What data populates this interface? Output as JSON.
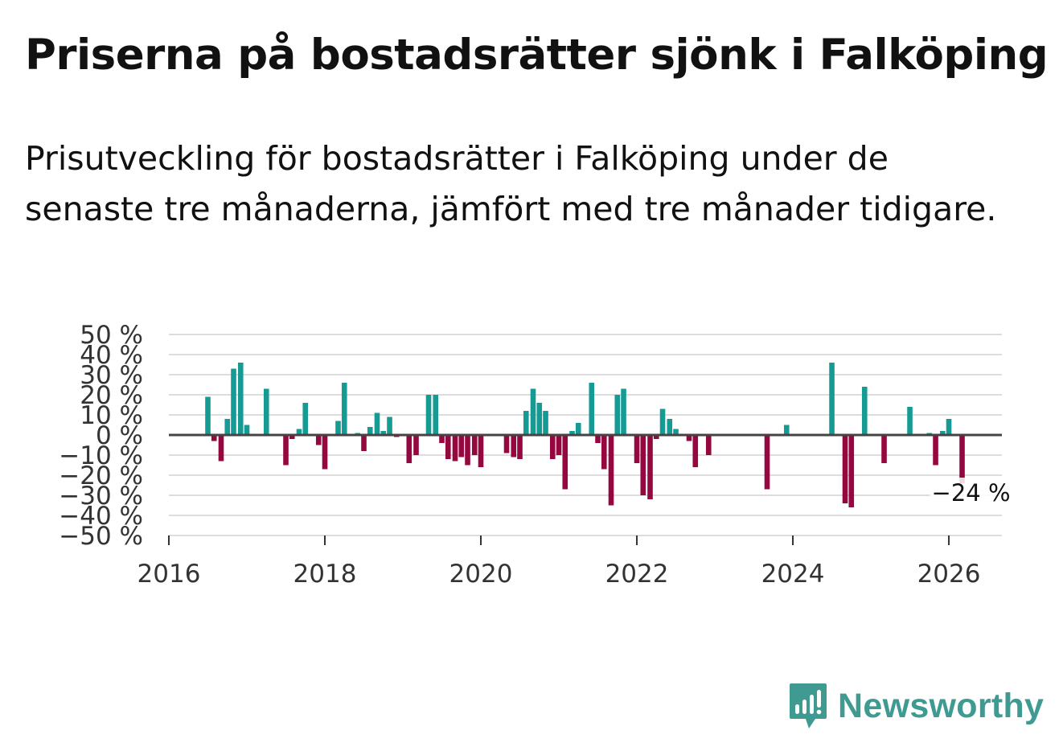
{
  "title": "Priserna på bostadsrätter sjönk i Falköping",
  "subtitle": "Prisutveckling för bostadsrätter i Falköping under de senaste tre månaderna, jämfört med tre månader tidigare.",
  "brand": {
    "name": "Newsworthy",
    "color": "#3f9a92"
  },
  "colors": {
    "positive": "#159b93",
    "negative": "#95083f",
    "grid": "#dddddd",
    "zero": "#444444"
  },
  "chart_data": {
    "type": "bar",
    "title": "",
    "xlabel": "",
    "ylabel": "",
    "ylim": [
      -50,
      50
    ],
    "xlim": [
      2016.0,
      2026.68
    ],
    "y_ticks": [
      {
        "value": 50,
        "label": "50 %"
      },
      {
        "value": 40,
        "label": "40 %"
      },
      {
        "value": 30,
        "label": "30 %"
      },
      {
        "value": 20,
        "label": "20 %"
      },
      {
        "value": 10,
        "label": "10 %"
      },
      {
        "value": 0,
        "label": "0 %"
      },
      {
        "value": -10,
        "label": "−10 %"
      },
      {
        "value": -20,
        "label": "−20 %"
      },
      {
        "value": -30,
        "label": "−30 %"
      },
      {
        "value": -40,
        "label": "−40 %"
      },
      {
        "value": -50,
        "label": "−50 %"
      }
    ],
    "x_ticks": [
      {
        "value": 2016,
        "label": "2016"
      },
      {
        "value": 2018,
        "label": "2018"
      },
      {
        "value": 2020,
        "label": "2020"
      },
      {
        "value": 2022,
        "label": "2022"
      },
      {
        "value": 2024,
        "label": "2024"
      },
      {
        "value": 2026,
        "label": "2026"
      }
    ],
    "annotation": {
      "x": 2026.17,
      "y": -24,
      "label": "−24 %"
    },
    "series": [
      {
        "name": "Prisutveckling",
        "points": [
          {
            "x": 2016.5,
            "y": 19
          },
          {
            "x": 2016.58,
            "y": -3
          },
          {
            "x": 2016.67,
            "y": -13
          },
          {
            "x": 2016.75,
            "y": 8
          },
          {
            "x": 2016.83,
            "y": 33
          },
          {
            "x": 2016.92,
            "y": 36
          },
          {
            "x": 2017.0,
            "y": 5
          },
          {
            "x": 2017.25,
            "y": 23
          },
          {
            "x": 2017.5,
            "y": -15
          },
          {
            "x": 2017.58,
            "y": -2
          },
          {
            "x": 2017.67,
            "y": 3
          },
          {
            "x": 2017.75,
            "y": 16
          },
          {
            "x": 2017.92,
            "y": -5
          },
          {
            "x": 2018.0,
            "y": -17
          },
          {
            "x": 2018.17,
            "y": 7
          },
          {
            "x": 2018.25,
            "y": 26
          },
          {
            "x": 2018.42,
            "y": 1
          },
          {
            "x": 2018.5,
            "y": -8
          },
          {
            "x": 2018.58,
            "y": 4
          },
          {
            "x": 2018.67,
            "y": 11
          },
          {
            "x": 2018.75,
            "y": 2
          },
          {
            "x": 2018.83,
            "y": 9
          },
          {
            "x": 2018.92,
            "y": -1
          },
          {
            "x": 2019.08,
            "y": -14
          },
          {
            "x": 2019.17,
            "y": -10
          },
          {
            "x": 2019.33,
            "y": 20
          },
          {
            "x": 2019.42,
            "y": 20
          },
          {
            "x": 2019.5,
            "y": -4
          },
          {
            "x": 2019.58,
            "y": -12
          },
          {
            "x": 2019.67,
            "y": -13
          },
          {
            "x": 2019.75,
            "y": -11
          },
          {
            "x": 2019.83,
            "y": -15
          },
          {
            "x": 2019.92,
            "y": -10
          },
          {
            "x": 2020.0,
            "y": -16
          },
          {
            "x": 2020.33,
            "y": -9
          },
          {
            "x": 2020.42,
            "y": -11
          },
          {
            "x": 2020.5,
            "y": -12
          },
          {
            "x": 2020.58,
            "y": 12
          },
          {
            "x": 2020.67,
            "y": 23
          },
          {
            "x": 2020.75,
            "y": 16
          },
          {
            "x": 2020.83,
            "y": 12
          },
          {
            "x": 2020.92,
            "y": -12
          },
          {
            "x": 2021.0,
            "y": -10
          },
          {
            "x": 2021.08,
            "y": -27
          },
          {
            "x": 2021.17,
            "y": 2
          },
          {
            "x": 2021.25,
            "y": 6
          },
          {
            "x": 2021.42,
            "y": 26
          },
          {
            "x": 2021.5,
            "y": -4
          },
          {
            "x": 2021.58,
            "y": -17
          },
          {
            "x": 2021.67,
            "y": -35
          },
          {
            "x": 2021.75,
            "y": 20
          },
          {
            "x": 2021.83,
            "y": 23
          },
          {
            "x": 2022.0,
            "y": -14
          },
          {
            "x": 2022.08,
            "y": -30
          },
          {
            "x": 2022.17,
            "y": -32
          },
          {
            "x": 2022.25,
            "y": -2
          },
          {
            "x": 2022.33,
            "y": 13
          },
          {
            "x": 2022.42,
            "y": 8
          },
          {
            "x": 2022.5,
            "y": 3
          },
          {
            "x": 2022.67,
            "y": -3
          },
          {
            "x": 2022.75,
            "y": -16
          },
          {
            "x": 2022.92,
            "y": -10
          },
          {
            "x": 2023.67,
            "y": -27
          },
          {
            "x": 2023.92,
            "y": 5
          },
          {
            "x": 2024.5,
            "y": 36
          },
          {
            "x": 2024.67,
            "y": -34
          },
          {
            "x": 2024.75,
            "y": -36
          },
          {
            "x": 2024.92,
            "y": 24
          },
          {
            "x": 2025.17,
            "y": -14
          },
          {
            "x": 2025.5,
            "y": 14
          },
          {
            "x": 2025.75,
            "y": 1
          },
          {
            "x": 2025.83,
            "y": -15
          },
          {
            "x": 2025.92,
            "y": 2
          },
          {
            "x": 2026.0,
            "y": 8
          },
          {
            "x": 2026.17,
            "y": -24
          }
        ]
      }
    ]
  }
}
